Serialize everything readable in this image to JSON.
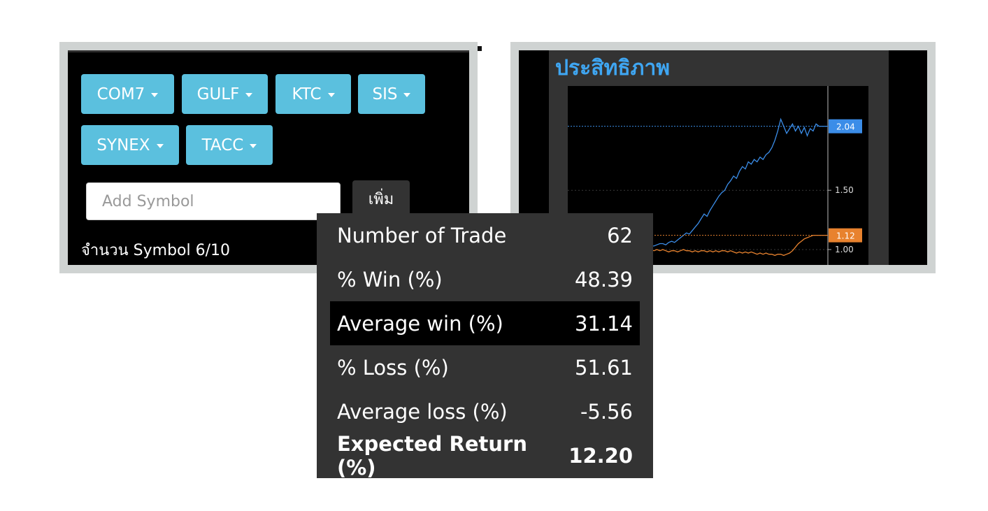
{
  "symbols": [
    {
      "label": "COM7"
    },
    {
      "label": "GULF"
    },
    {
      "label": "KTC"
    },
    {
      "label": "SIS"
    },
    {
      "label": "SYNEX"
    },
    {
      "label": "TACC"
    }
  ],
  "add_symbol": {
    "placeholder": "Add Symbol",
    "value": "",
    "button_label": "เพิ่ม"
  },
  "symbol_count": "จำนวน Symbol 6/10",
  "chart_panel": {
    "title": "ประสิทธิภาพ"
  },
  "chart_data": {
    "type": "line",
    "title": "ประสิทธิภาพ",
    "xlabel": "",
    "ylabel": "",
    "ylim": [
      0.87,
      2.38
    ],
    "y_ticks": [
      "1.00",
      "1.50"
    ],
    "grid": true,
    "series": [
      {
        "color": "#3b8de8",
        "last_label": "2.04",
        "values": [
          1.0,
          1.0,
          1.01,
          1.02,
          1.02,
          1.03,
          1.03,
          1.04,
          1.05,
          1.05,
          1.04,
          1.06,
          1.07,
          1.06,
          1.08,
          1.1,
          1.12,
          1.14,
          1.13,
          1.16,
          1.19,
          1.22,
          1.26,
          1.3,
          1.28,
          1.33,
          1.37,
          1.41,
          1.45,
          1.48,
          1.5,
          1.55,
          1.58,
          1.62,
          1.6,
          1.66,
          1.7,
          1.68,
          1.74,
          1.72,
          1.76,
          1.74,
          1.78,
          1.76,
          1.8,
          1.82,
          1.86,
          1.92,
          2.0,
          2.1,
          2.04,
          1.98,
          2.02,
          2.06,
          2.0,
          2.04,
          1.98,
          2.03,
          1.96,
          2.02,
          2.0,
          2.06,
          2.04,
          2.04,
          2.04,
          2.04
        ]
      },
      {
        "color": "#e8822e",
        "last_label": "1.12",
        "values": [
          1.0,
          1.0,
          0.99,
          1.0,
          1.01,
          1.0,
          0.99,
          1.0,
          0.99,
          1.0,
          0.99,
          0.98,
          0.99,
          0.99,
          0.98,
          0.99,
          1.0,
          0.99,
          0.99,
          0.98,
          0.99,
          0.98,
          0.99,
          0.99,
          0.98,
          0.99,
          0.98,
          0.99,
          0.98,
          0.99,
          0.99,
          0.98,
          0.99,
          0.98,
          0.97,
          0.98,
          0.97,
          0.98,
          0.97,
          0.98,
          0.97,
          0.96,
          0.97,
          0.96,
          0.97,
          0.96,
          0.96,
          0.95,
          0.96,
          0.96,
          0.95,
          0.96,
          0.97,
          0.99,
          1.02,
          1.05,
          1.07,
          1.09,
          1.1,
          1.11,
          1.12,
          1.12,
          1.12,
          1.12,
          1.12,
          1.12
        ]
      }
    ]
  },
  "stats": [
    {
      "label": "Number of Trade",
      "value": "62"
    },
    {
      "label": "% Win (%)",
      "value": "48.39"
    },
    {
      "label": "Average win (%)",
      "value": "31.14"
    },
    {
      "label": "% Loss (%)",
      "value": "51.61"
    },
    {
      "label": "Average loss (%)",
      "value": "-5.56"
    },
    {
      "label": "Expected Return (%)",
      "value": "12.20"
    }
  ]
}
